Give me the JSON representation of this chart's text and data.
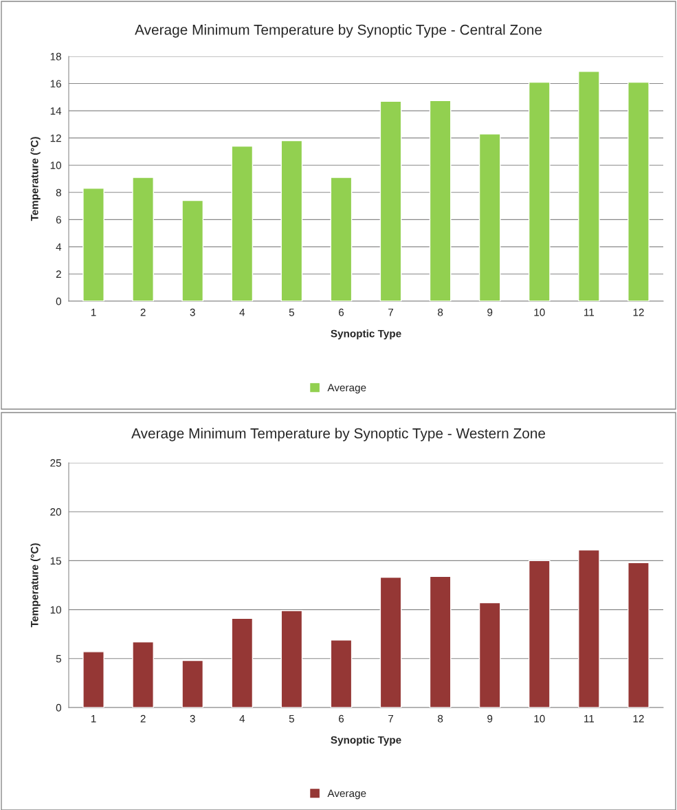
{
  "chart_data": [
    {
      "type": "bar",
      "title": "Average Minimum Temperature by Synoptic Type - Central Zone",
      "xlabel": "Synoptic Type",
      "ylabel": "Temperature (°C)",
      "categories": [
        "1",
        "2",
        "3",
        "4",
        "5",
        "6",
        "7",
        "8",
        "9",
        "10",
        "11",
        "12"
      ],
      "series": [
        {
          "name": "Average",
          "color": "#92d050",
          "values": [
            8.3,
            9.1,
            7.4,
            11.4,
            11.8,
            9.1,
            14.7,
            14.75,
            12.3,
            16.1,
            16.9,
            16.1
          ]
        }
      ],
      "ylim": [
        0,
        18
      ],
      "yticks": [
        0,
        2,
        4,
        6,
        8,
        10,
        12,
        14,
        16,
        18
      ],
      "grid": "y",
      "legend": "bottom"
    },
    {
      "type": "bar",
      "title": "Average Minimum Temperature by Synoptic Type - Western Zone",
      "xlabel": "Synoptic Type",
      "ylabel": "Temperature (°C)",
      "categories": [
        "1",
        "2",
        "3",
        "4",
        "5",
        "6",
        "7",
        "8",
        "9",
        "10",
        "11",
        "12"
      ],
      "series": [
        {
          "name": "Average",
          "color": "#953735",
          "values": [
            5.7,
            6.7,
            4.8,
            9.1,
            9.9,
            6.9,
            13.3,
            13.4,
            10.7,
            15.0,
            16.1,
            14.8
          ]
        }
      ],
      "ylim": [
        0,
        25
      ],
      "yticks": [
        0,
        5,
        10,
        15,
        20,
        25
      ],
      "grid": "y",
      "legend": "bottom"
    }
  ]
}
